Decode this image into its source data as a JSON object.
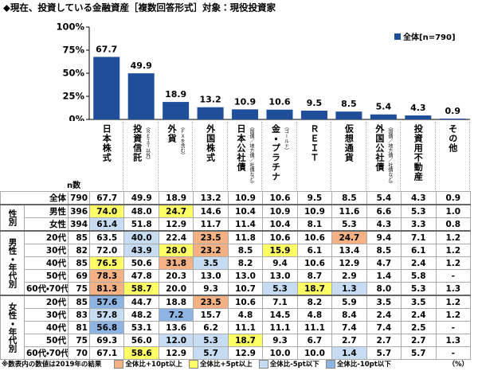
{
  "chart_data": {
    "type": "bar",
    "title": "◆現在、投資している金融資産［複数回答形式］対象：現役投資家",
    "categories": [
      "日本株式",
      "投資信託",
      "外貨",
      "外国株式",
      "日本公社債",
      "金・プラチナ",
      "ＲＥＩＴ",
      "仮想通貨",
      "外国公社債",
      "投資用不動産",
      "その他"
    ],
    "category_notes": [
      null,
      "（ＲＥＩＴ以外）",
      "（ＦＸを含む）",
      null,
      "（国債／地方債／社債など）",
      "（ゴールド）",
      null,
      null,
      "（国債／地方債／社債など）",
      null,
      null
    ],
    "series": [
      {
        "name": "全体[n=790]",
        "color": "#1f4e9b",
        "values": [
          67.7,
          49.9,
          18.9,
          13.2,
          10.9,
          10.6,
          9.5,
          8.5,
          5.4,
          4.3,
          0.9
        ]
      }
    ],
    "ylim": [
      0,
      100
    ],
    "yticks": [
      {
        "value": 0,
        "label": "0%"
      },
      {
        "value": 25,
        "label": "25%"
      },
      {
        "value": 50,
        "label": "50%"
      },
      {
        "value": 75,
        "label": "75%"
      },
      {
        "value": 100,
        "label": "100%"
      }
    ],
    "legend": "top-right"
  },
  "table": {
    "n_header": "n数",
    "total": {
      "label": "全体",
      "n": "790",
      "values": [
        "67.7",
        "49.9",
        "18.9",
        "13.2",
        "10.9",
        "10.6",
        "9.5",
        "8.5",
        "5.4",
        "4.3",
        "0.9"
      ]
    },
    "groups": [
      {
        "label": "性別",
        "rows": [
          {
            "label": "男性",
            "n": "396",
            "values": [
              "74.0",
              "48.0",
              "24.7",
              "14.6",
              "10.4",
              "10.9",
              "10.9",
              "11.6",
              "6.6",
              "5.3",
              "1.0"
            ],
            "colors": [
              "#ffff66",
              null,
              "#ffff66",
              null,
              null,
              null,
              null,
              null,
              null,
              null,
              null
            ]
          },
          {
            "label": "女性",
            "n": "394",
            "values": [
              "61.4",
              "51.8",
              "12.9",
              "11.7",
              "11.4",
              "10.4",
              "8.1",
              "5.3",
              "4.3",
              "3.3",
              "0.8"
            ],
            "colors": [
              "#c6dcf2",
              null,
              null,
              null,
              null,
              null,
              null,
              null,
              null,
              null,
              null
            ]
          }
        ]
      },
      {
        "label": "男性・年代別",
        "rows": [
          {
            "label": "20代",
            "n": "85",
            "values": [
              "63.5",
              "40.0",
              "22.4",
              "23.5",
              "11.8",
              "10.6",
              "10.6",
              "24.7",
              "9.4",
              "7.1",
              "1.2"
            ],
            "colors": [
              null,
              "#c6dcf2",
              null,
              "#f4b183",
              null,
              null,
              null,
              "#f4b183",
              null,
              null,
              null
            ]
          },
          {
            "label": "30代",
            "n": "82",
            "values": [
              "72.0",
              "43.9",
              "28.0",
              "23.2",
              "8.5",
              "15.9",
              "6.1",
              "13.4",
              "8.5",
              "6.1",
              "1.2"
            ],
            "colors": [
              null,
              "#c6dcf2",
              "#ffff66",
              "#f4b183",
              null,
              "#ffff66",
              null,
              null,
              null,
              null,
              null
            ]
          },
          {
            "label": "40代",
            "n": "85",
            "values": [
              "76.5",
              "50.6",
              "31.8",
              "3.5",
              "8.2",
              "9.4",
              "10.6",
              "12.9",
              "4.7",
              "2.4",
              "1.2"
            ],
            "colors": [
              "#ffff66",
              null,
              "#f4b183",
              "#c6dcf2",
              null,
              null,
              null,
              null,
              null,
              null,
              null
            ]
          },
          {
            "label": "50代",
            "n": "69",
            "values": [
              "78.3",
              "47.8",
              "20.3",
              "13.0",
              "13.0",
              "13.0",
              "8.7",
              "2.9",
              "1.4",
              "5.8",
              "-"
            ],
            "colors": [
              "#f4b183",
              null,
              null,
              null,
              null,
              null,
              null,
              null,
              null,
              null,
              null
            ]
          },
          {
            "label": "60代・70代",
            "n": "75",
            "values": [
              "81.3",
              "58.7",
              "20.0",
              "9.3",
              "10.7",
              "5.3",
              "18.7",
              "1.3",
              "8.0",
              "5.3",
              "1.3"
            ],
            "colors": [
              "#f4b183",
              "#ffff66",
              null,
              null,
              null,
              "#c6dcf2",
              "#ffff66",
              "#c6dcf2",
              null,
              null,
              null
            ]
          }
        ]
      },
      {
        "label": "女性・年代別",
        "rows": [
          {
            "label": "20代",
            "n": "85",
            "values": [
              "57.6",
              "44.7",
              "18.8",
              "23.5",
              "10.6",
              "7.1",
              "8.2",
              "5.9",
              "3.5",
              "3.5",
              "1.2"
            ],
            "colors": [
              "#8db4e2",
              null,
              null,
              "#f4b183",
              null,
              null,
              null,
              null,
              null,
              null,
              null
            ]
          },
          {
            "label": "30代",
            "n": "83",
            "values": [
              "57.8",
              "48.2",
              "7.2",
              "15.7",
              "4.8",
              "14.5",
              "4.8",
              "8.4",
              "2.4",
              "2.4",
              "1.2"
            ],
            "colors": [
              "#c6dcf2",
              null,
              "#8db4e2",
              null,
              null,
              null,
              null,
              null,
              null,
              null,
              null
            ]
          },
          {
            "label": "40代",
            "n": "81",
            "values": [
              "56.8",
              "53.1",
              "13.6",
              "6.2",
              "11.1",
              "11.1",
              "11.1",
              "7.4",
              "7.4",
              "2.5",
              "-"
            ],
            "colors": [
              "#8db4e2",
              null,
              null,
              null,
              null,
              null,
              null,
              null,
              null,
              null,
              null
            ]
          },
          {
            "label": "50代",
            "n": "75",
            "values": [
              "69.3",
              "56.0",
              "12.0",
              "5.3",
              "18.7",
              "9.3",
              "6.7",
              "2.7",
              "2.7",
              "2.7",
              "1.3"
            ],
            "colors": [
              null,
              null,
              "#c6dcf2",
              "#c6dcf2",
              "#ffff66",
              null,
              null,
              null,
              null,
              null,
              null
            ]
          },
          {
            "label": "60代・70代",
            "n": "70",
            "values": [
              "67.1",
              "58.6",
              "12.9",
              "5.7",
              "12.9",
              "10.0",
              "10.0",
              "1.4",
              "5.7",
              "5.7",
              "-"
            ],
            "colors": [
              null,
              "#ffff66",
              null,
              "#c6dcf2",
              null,
              null,
              null,
              "#c6dcf2",
              null,
              null,
              null
            ]
          }
        ]
      }
    ]
  },
  "footer": {
    "note": "※数表内の数値は2019年の結果",
    "legend": [
      {
        "label": "全体比+10pt以上",
        "color": "#f4b183"
      },
      {
        "label": "全体比+5pt以上",
        "color": "#ffff66"
      },
      {
        "label": "全体比-5pt以下",
        "color": "#c6dcf2"
      },
      {
        "label": "全体比-10pt以下",
        "color": "#8db4e2"
      }
    ],
    "unit": "（%）"
  }
}
